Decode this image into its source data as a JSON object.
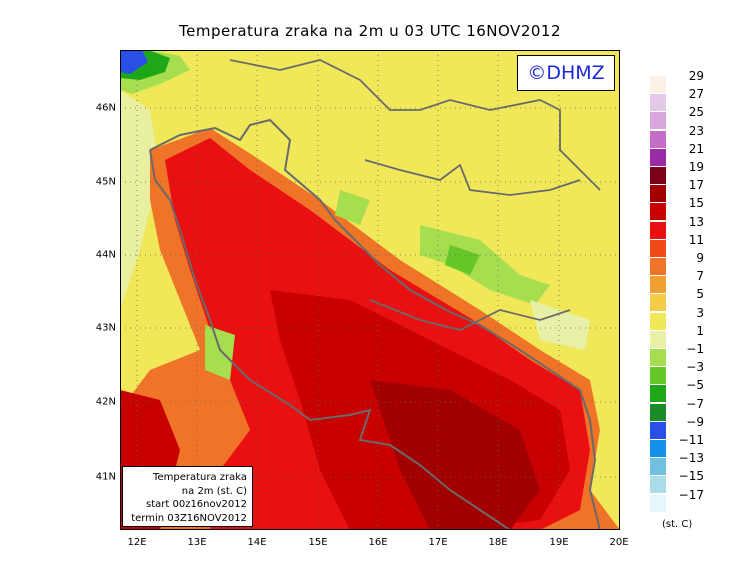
{
  "title": "Temperatura zraka na 2m u 03 UTC 16NOV2012",
  "logo": "©DHMZ",
  "info_box": {
    "line1": "Temperatura zraka",
    "line2": "na 2m (st. C)",
    "line3": "start 00z16nov2012",
    "line4": "termin 03Z16NOV2012"
  },
  "lat_labels": [
    "46N",
    "45N",
    "44N",
    "43N",
    "42N",
    "41N"
  ],
  "lon_labels": [
    "12E",
    "13E",
    "14E",
    "15E",
    "16E",
    "17E",
    "18E",
    "19E",
    "20E"
  ],
  "legend": {
    "units": "(st. C)",
    "levels": [
      "29",
      "27",
      "25",
      "23",
      "21",
      "19",
      "17",
      "15",
      "13",
      "11",
      "9",
      "7",
      "5",
      "3",
      "1",
      "−1",
      "−3",
      "−5",
      "−7",
      "−9",
      "−11",
      "−13",
      "−15",
      "−17"
    ],
    "colors": [
      "#fdf0e6",
      "#e4c8e8",
      "#d8a6dc",
      "#c46cc8",
      "#9a2aa6",
      "#7c0018",
      "#a20000",
      "#c80000",
      "#e81010",
      "#f04a18",
      "#f07428",
      "#f0a030",
      "#f4cc48",
      "#f0e858",
      "#e8f0a8",
      "#a6de50",
      "#66c828",
      "#1ea818",
      "#1a8c28",
      "#2850e8",
      "#1490e8",
      "#70c0e0",
      "#a8dce8",
      "#e4f8fc"
    ]
  }
}
